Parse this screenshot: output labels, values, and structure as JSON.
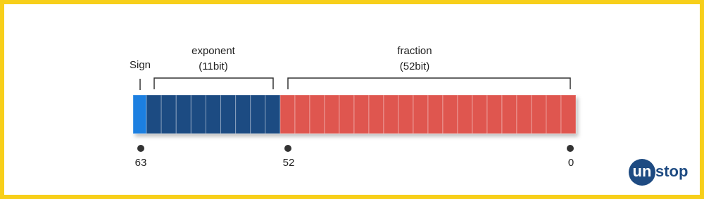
{
  "labels": {
    "sign": "Sign",
    "exponent": "exponent",
    "exponent_bits": "(11bit)",
    "fraction": "fraction",
    "fraction_bits": "(52bit)"
  },
  "positions": [
    63,
    52,
    0
  ],
  "logo": [
    "un",
    "stop"
  ]
}
